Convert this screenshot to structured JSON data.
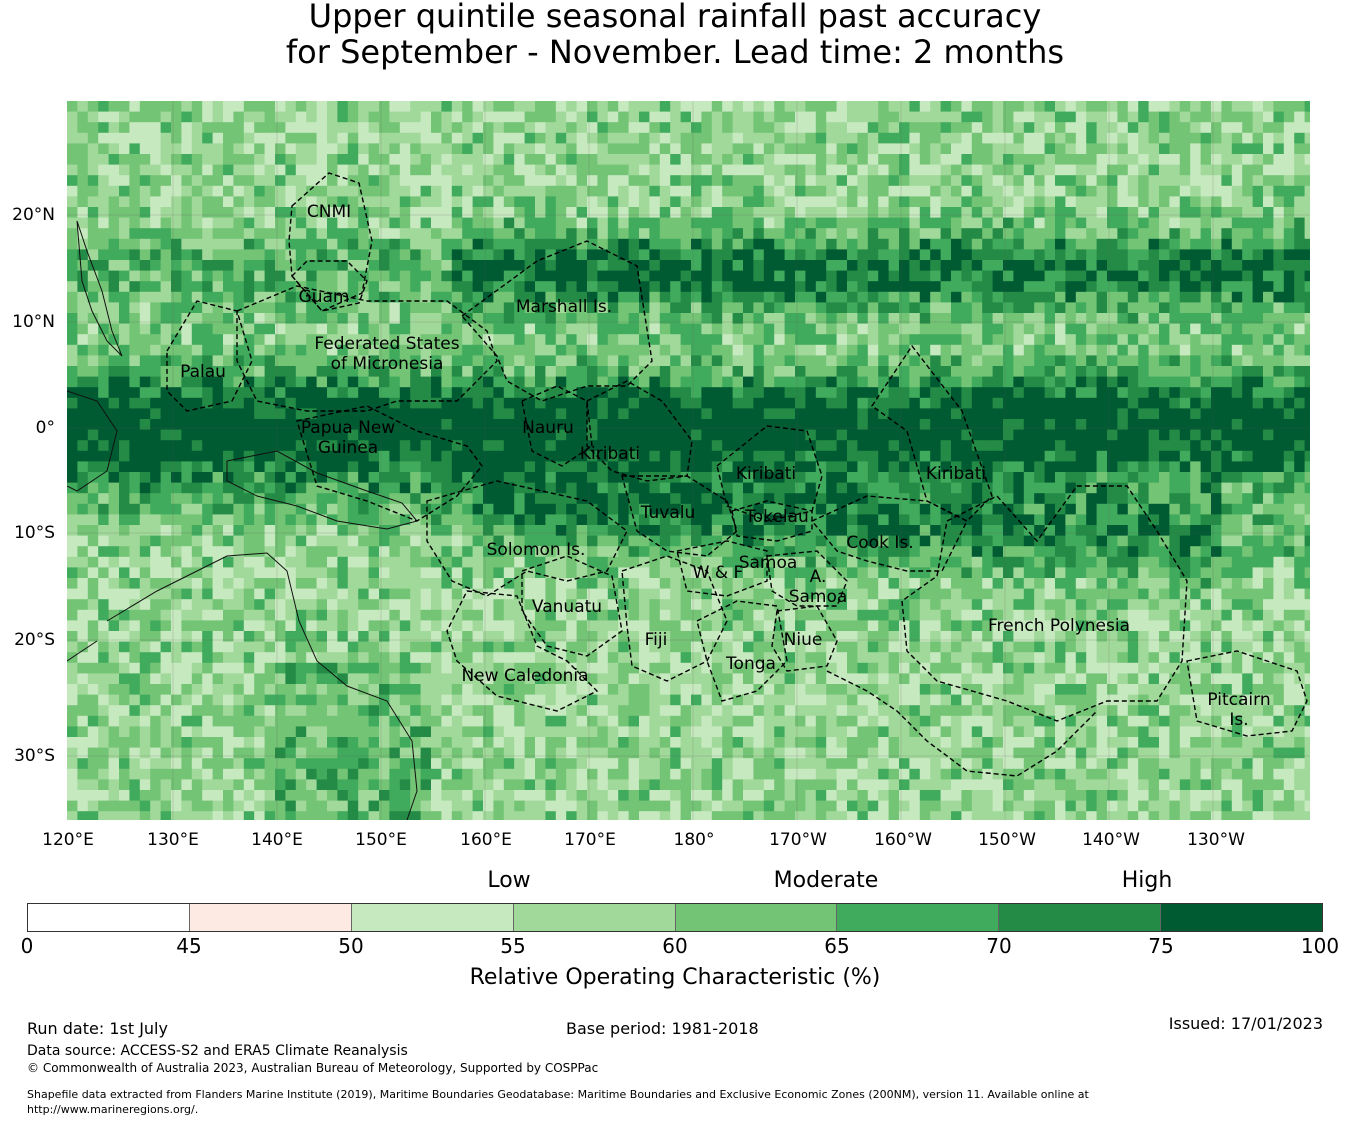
{
  "title": {
    "line1": "Upper quintile seasonal rainfall past accuracy",
    "line2": "for September - November. Lead time: 2 months"
  },
  "map": {
    "lat_ticks": [
      "20°N",
      "10°N",
      "0°",
      "10°S",
      "20°S",
      "30°S"
    ],
    "lon_ticks": [
      "120°E",
      "130°E",
      "140°E",
      "150°E",
      "160°E",
      "170°E",
      "180°",
      "170°W",
      "160°W",
      "150°W",
      "140°W",
      "130°W"
    ],
    "region_labels": [
      "CNMI",
      "Guam",
      "Marshall Is.",
      "Federated States\nof Micronesia",
      "Palau",
      "Papua New\nGuinea",
      "Nauru",
      "Kiribati",
      "Kiribati",
      "Kiribati",
      "Tuvalu",
      "Tokelau",
      "Solomon Is.",
      "Samoa",
      "W & F",
      "A.\nSamoa",
      "Cook Is.",
      "Vanuatu",
      "Fiji",
      "Niue",
      "Tonga",
      "French Polynesia",
      "New Caledonia",
      "Pitcairn\nIs."
    ]
  },
  "legend": {
    "categories": [
      "Low",
      "Moderate",
      "High"
    ],
    "bins": [
      {
        "from": 0,
        "to": 45,
        "color": "#ffffff"
      },
      {
        "from": 45,
        "to": 50,
        "color": "#fdebe3"
      },
      {
        "from": 50,
        "to": 55,
        "color": "#c7e9c0"
      },
      {
        "from": 55,
        "to": 60,
        "color": "#a1d99b"
      },
      {
        "from": 60,
        "to": 65,
        "color": "#74c476"
      },
      {
        "from": 65,
        "to": 70,
        "color": "#41ab5d"
      },
      {
        "from": 70,
        "to": 75,
        "color": "#238b45"
      },
      {
        "from": 75,
        "to": 100,
        "color": "#005a32"
      }
    ],
    "tick_labels": [
      "0",
      "45",
      "50",
      "55",
      "60",
      "65",
      "70",
      "75",
      "100"
    ],
    "axis_label": "Relative Operating Characteristic (%)"
  },
  "footer": {
    "run_date": "Run date: 1st July",
    "base_period": "Base period: 1981-2018",
    "issued": "Issued: 17/01/2023",
    "data_source": "Data source: ACCESS-S2 and ERA5 Climate Reanalysis",
    "copyright": "© Commonwealth of Australia 2023, Australian Bureau of Meteorology, Supported by COSPPac",
    "shapefile": "Shapefile data extracted from Flanders Marine Institute (2019), Maritime Boundaries Geodatabase: Maritime Boundaries and Exclusive Economic Zones (200NM), version 11. Available online at http://www.marineregions.org/."
  }
}
